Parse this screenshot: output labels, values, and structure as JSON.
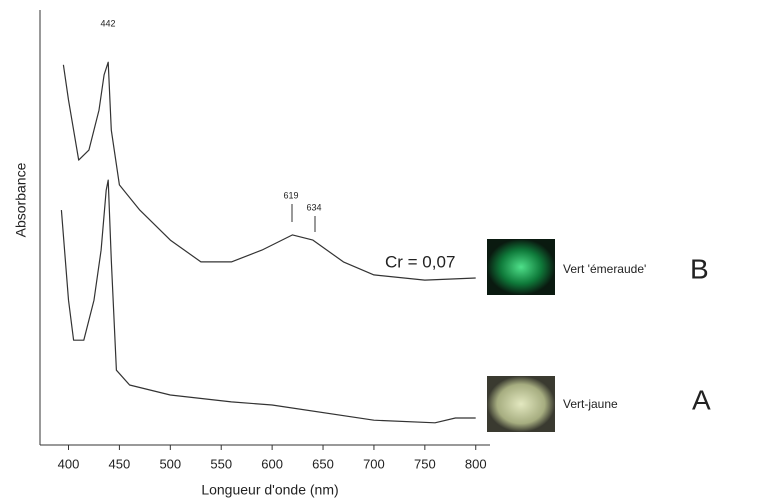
{
  "chart_data": {
    "type": "line",
    "x_label": "Longueur d'onde (nm)",
    "y_label": "Absorbance",
    "xlim": [
      372,
      814
    ],
    "xticks": [
      400,
      450,
      500,
      550,
      600,
      650,
      700,
      750,
      800
    ],
    "ylim": [
      0,
      100
    ],
    "series": [
      {
        "name": "B",
        "color": "#333333",
        "x": [
          395,
          400,
          410,
          420,
          430,
          435,
          439,
          442,
          450,
          470,
          500,
          530,
          560,
          590,
          620,
          640,
          670,
          700,
          750,
          800
        ],
        "values": [
          87.4,
          79.3,
          65.5,
          67.8,
          77,
          85.1,
          88,
          72.4,
          59.8,
          54,
          47.1,
          42.1,
          42.1,
          44.8,
          48.3,
          47.1,
          42.1,
          39.1,
          37.9,
          38.4
        ]
      },
      {
        "name": "A",
        "color": "#333333",
        "x": [
          393,
          400,
          405,
          415,
          425,
          432,
          437,
          439,
          442,
          447,
          460,
          500,
          560,
          600,
          700,
          760,
          780,
          800
        ],
        "values": [
          54,
          33.3,
          24.1,
          24.1,
          33.3,
          44.8,
          58.6,
          60.9,
          42.5,
          17.2,
          13.8,
          11.5,
          9.9,
          9.2,
          5.7,
          5.1,
          6.2,
          6.2
        ]
      }
    ],
    "annotations": {
      "peak_442": "442",
      "peak_619": "619",
      "peak_634": "634",
      "cr": "Cr = 0,07",
      "label_b": "Vert 'émeraude'",
      "label_a": "Vert-jaune"
    }
  }
}
